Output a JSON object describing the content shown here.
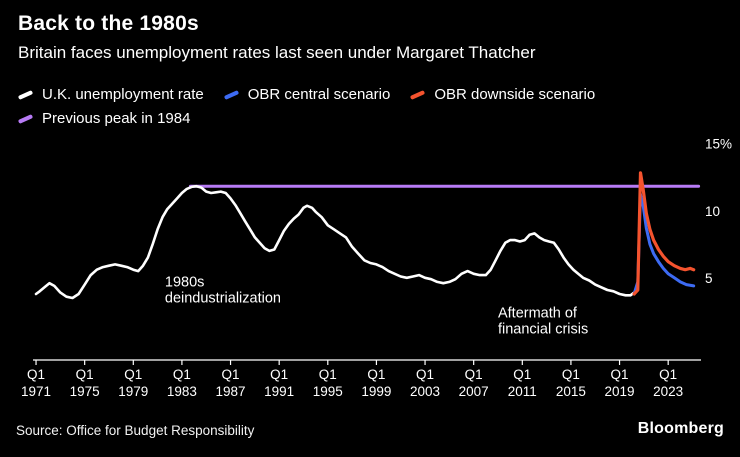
{
  "chart_data": {
    "type": "line",
    "title": "Back to the 1980s",
    "subtitle": "Britain faces unemployment rates last seen under Margaret Thatcher",
    "xlim": [
      1970.75,
      2025.7
    ],
    "ylim": [
      -1,
      16
    ],
    "grid": false,
    "legend_position": "top",
    "yticks": [
      {
        "value": 15,
        "label": "15%"
      },
      {
        "value": 10,
        "label": "10"
      },
      {
        "value": 5,
        "label": "5"
      }
    ],
    "xticks": {
      "quarter_label": "Q1",
      "years": [
        1971,
        1975,
        1979,
        1983,
        1987,
        1991,
        1995,
        1999,
        2003,
        2007,
        2011,
        2015,
        2019,
        2023
      ]
    },
    "series": [
      {
        "id": "uk-unemployment-rate",
        "name": "U.K. unemployment rate",
        "color": "#ffffff",
        "width": 2.6,
        "points": [
          [
            1971,
            3.9
          ],
          [
            1971.3,
            4.1
          ],
          [
            1971.7,
            4.4
          ],
          [
            1972.1,
            4.7
          ],
          [
            1972.5,
            4.5
          ],
          [
            1973,
            4.0
          ],
          [
            1973.5,
            3.7
          ],
          [
            1974,
            3.6
          ],
          [
            1974.5,
            3.9
          ],
          [
            1975,
            4.6
          ],
          [
            1975.5,
            5.3
          ],
          [
            1976,
            5.7
          ],
          [
            1976.5,
            5.9
          ],
          [
            1977,
            6.0
          ],
          [
            1977.5,
            6.1
          ],
          [
            1978,
            6.0
          ],
          [
            1978.5,
            5.9
          ],
          [
            1979,
            5.7
          ],
          [
            1979.4,
            5.6
          ],
          [
            1979.8,
            6.0
          ],
          [
            1980.2,
            6.6
          ],
          [
            1980.6,
            7.6
          ],
          [
            1981,
            8.7
          ],
          [
            1981.4,
            9.6
          ],
          [
            1981.8,
            10.2
          ],
          [
            1982.2,
            10.6
          ],
          [
            1982.6,
            11.0
          ],
          [
            1983,
            11.4
          ],
          [
            1983.4,
            11.7
          ],
          [
            1983.8,
            11.85
          ],
          [
            1984.2,
            11.9
          ],
          [
            1984.6,
            11.8
          ],
          [
            1985,
            11.5
          ],
          [
            1985.4,
            11.4
          ],
          [
            1985.8,
            11.45
          ],
          [
            1986.2,
            11.5
          ],
          [
            1986.6,
            11.4
          ],
          [
            1987,
            11.0
          ],
          [
            1987.4,
            10.5
          ],
          [
            1987.8,
            9.9
          ],
          [
            1988.2,
            9.3
          ],
          [
            1988.6,
            8.7
          ],
          [
            1989,
            8.1
          ],
          [
            1989.4,
            7.7
          ],
          [
            1989.8,
            7.3
          ],
          [
            1990.2,
            7.1
          ],
          [
            1990.6,
            7.2
          ],
          [
            1991,
            7.9
          ],
          [
            1991.4,
            8.6
          ],
          [
            1991.8,
            9.1
          ],
          [
            1992.2,
            9.5
          ],
          [
            1992.6,
            9.8
          ],
          [
            1993,
            10.3
          ],
          [
            1993.3,
            10.45
          ],
          [
            1993.7,
            10.3
          ],
          [
            1994,
            10.0
          ],
          [
            1994.5,
            9.6
          ],
          [
            1995,
            9.0
          ],
          [
            1995.5,
            8.7
          ],
          [
            1996,
            8.4
          ],
          [
            1996.5,
            8.1
          ],
          [
            1997,
            7.4
          ],
          [
            1997.5,
            6.9
          ],
          [
            1998,
            6.4
          ],
          [
            1998.5,
            6.2
          ],
          [
            1999,
            6.1
          ],
          [
            1999.5,
            5.9
          ],
          [
            2000,
            5.6
          ],
          [
            2000.5,
            5.4
          ],
          [
            2001,
            5.2
          ],
          [
            2001.5,
            5.1
          ],
          [
            2002,
            5.2
          ],
          [
            2002.5,
            5.3
          ],
          [
            2003,
            5.1
          ],
          [
            2003.5,
            5.0
          ],
          [
            2004,
            4.8
          ],
          [
            2004.5,
            4.7
          ],
          [
            2005,
            4.8
          ],
          [
            2005.5,
            5.0
          ],
          [
            2006,
            5.4
          ],
          [
            2006.5,
            5.6
          ],
          [
            2007,
            5.4
          ],
          [
            2007.5,
            5.3
          ],
          [
            2008,
            5.3
          ],
          [
            2008.4,
            5.7
          ],
          [
            2008.8,
            6.4
          ],
          [
            2009.2,
            7.1
          ],
          [
            2009.6,
            7.7
          ],
          [
            2010,
            7.9
          ],
          [
            2010.4,
            7.9
          ],
          [
            2010.8,
            7.8
          ],
          [
            2011.2,
            7.9
          ],
          [
            2011.6,
            8.3
          ],
          [
            2012,
            8.4
          ],
          [
            2012.4,
            8.1
          ],
          [
            2012.8,
            7.9
          ],
          [
            2013.2,
            7.8
          ],
          [
            2013.6,
            7.7
          ],
          [
            2014,
            7.2
          ],
          [
            2014.4,
            6.6
          ],
          [
            2014.8,
            6.1
          ],
          [
            2015.2,
            5.7
          ],
          [
            2015.6,
            5.4
          ],
          [
            2016,
            5.1
          ],
          [
            2016.5,
            4.9
          ],
          [
            2017,
            4.6
          ],
          [
            2017.5,
            4.4
          ],
          [
            2018,
            4.2
          ],
          [
            2018.5,
            4.1
          ],
          [
            2019,
            3.9
          ],
          [
            2019.5,
            3.8
          ],
          [
            2019.9,
            3.8
          ],
          [
            2020.2,
            4.0
          ]
        ]
      },
      {
        "id": "obr-central-scenario",
        "name": "OBR central scenario",
        "color": "#3d6bf3",
        "width": 3,
        "points": [
          [
            2020.2,
            3.9
          ],
          [
            2020.5,
            4.8
          ],
          [
            2020.72,
            11.3
          ],
          [
            2020.95,
            10.4
          ],
          [
            2021.2,
            8.8
          ],
          [
            2021.5,
            7.6
          ],
          [
            2021.8,
            6.9
          ],
          [
            2022.2,
            6.3
          ],
          [
            2022.6,
            5.8
          ],
          [
            2023,
            5.4
          ],
          [
            2023.5,
            5.1
          ],
          [
            2024,
            4.8
          ],
          [
            2024.5,
            4.6
          ],
          [
            2025.1,
            4.5
          ]
        ]
      },
      {
        "id": "obr-downside-scenario",
        "name": "OBR downside scenario",
        "color": "#f4532e",
        "width": 3.2,
        "points": [
          [
            2020.2,
            3.9
          ],
          [
            2020.5,
            4.2
          ],
          [
            2020.72,
            12.9
          ],
          [
            2020.95,
            11.6
          ],
          [
            2021.2,
            9.9
          ],
          [
            2021.5,
            8.7
          ],
          [
            2021.8,
            7.9
          ],
          [
            2022.2,
            7.2
          ],
          [
            2022.6,
            6.7
          ],
          [
            2023,
            6.3
          ],
          [
            2023.5,
            6.0
          ],
          [
            2024,
            5.8
          ],
          [
            2024.4,
            5.7
          ],
          [
            2024.8,
            5.8
          ],
          [
            2025.1,
            5.7
          ]
        ]
      },
      {
        "id": "previous-peak-1984",
        "name": "Previous peak in 1984",
        "color": "#b77bf5",
        "width": 3,
        "points": [
          [
            1983.7,
            11.9
          ],
          [
            2025.5,
            11.9
          ]
        ]
      }
    ],
    "annotations": [
      {
        "lines": [
          "1980s",
          "deindustrialization"
        ],
        "x": 1981.6,
        "y": 4.45
      },
      {
        "lines": [
          "Aftermath of",
          "financial crisis"
        ],
        "x": 2009.0,
        "y": 2.15
      }
    ]
  },
  "footer": {
    "source": "Source: Office for Budget Responsibility",
    "logo": "Bloomberg"
  }
}
